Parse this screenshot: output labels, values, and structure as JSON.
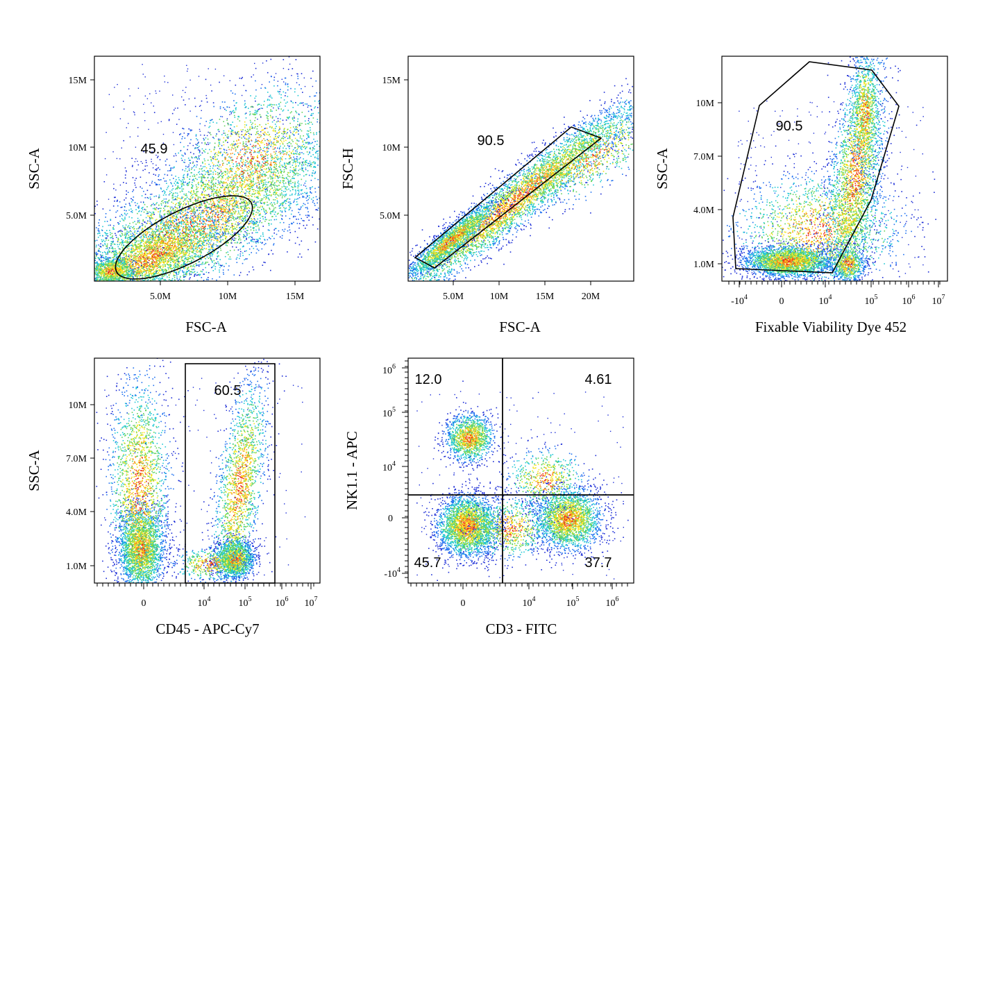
{
  "chart_data": [
    {
      "type": "scatter",
      "xlabel": "FSC-A",
      "ylabel": "SSC-A",
      "xticks": [
        "5.0M",
        "10M",
        "15M"
      ],
      "yticks": [
        "5.0M",
        "10M",
        "15M"
      ],
      "gate": {
        "shape": "ellipse",
        "percent": "45.9"
      }
    },
    {
      "type": "scatter",
      "xlabel": "FSC-A",
      "ylabel": "FSC-H",
      "xticks": [
        "5.0M",
        "10M",
        "15M",
        "20M"
      ],
      "yticks": [
        "5.0M",
        "10M",
        "15M"
      ],
      "gate": {
        "shape": "polygon",
        "percent": "90.5"
      }
    },
    {
      "type": "scatter",
      "xlabel": "Fixable Viability Dye 452",
      "ylabel": "SSC-A",
      "xticks": [
        "-10^4",
        "0",
        "10^4",
        "10^5",
        "10^6",
        "10^7"
      ],
      "yticks": [
        "1.0M",
        "4.0M",
        "7.0M",
        "10M"
      ],
      "gate": {
        "shape": "polygon",
        "percent": "90.5"
      }
    },
    {
      "type": "scatter",
      "xlabel": "CD45 - APC-Cy7",
      "ylabel": "SSC-A",
      "xticks": [
        "0",
        "10^4",
        "10^5",
        "10^6",
        "10^7"
      ],
      "yticks": [
        "1.0M",
        "4.0M",
        "7.0M",
        "10M"
      ],
      "gate": {
        "shape": "rectangle",
        "percent": "60.5"
      }
    },
    {
      "type": "scatter",
      "xlabel": "CD3 - FITC",
      "ylabel": "NK1.1 - APC",
      "xticks": [
        "0",
        "10^4",
        "10^5",
        "10^6"
      ],
      "yticks": [
        "-10^4",
        "0",
        "10^4",
        "10^5",
        "10^6"
      ],
      "quadrants": {
        "top_left": "12.0",
        "top_right": "4.61",
        "bottom_left": "45.7",
        "bottom_right": "37.7"
      }
    }
  ]
}
